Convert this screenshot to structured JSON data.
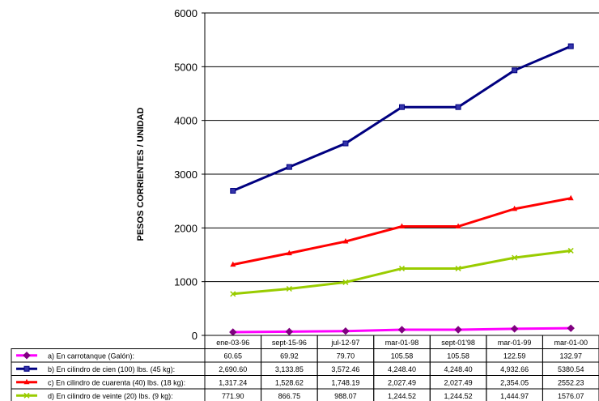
{
  "chart_data": {
    "type": "line",
    "title": "",
    "xlabel": "",
    "ylabel": "PESOS CORRIENTES / UNIDAD",
    "ylim": [
      0,
      6000
    ],
    "yticks": [
      "0",
      "1000",
      "2000",
      "3000",
      "4000",
      "5000",
      "6000"
    ],
    "categories": [
      "ene-03-96",
      "sept-15-96",
      "jul-12-97",
      "mar-01-98",
      "sept-01'98",
      "mar-01-99",
      "mar-01-00"
    ],
    "grid": true,
    "legend": "data-table",
    "series": [
      {
        "name": "a) En carrotanque (Galón):",
        "color": "#ff00ff",
        "marker": "diamond",
        "marker_color": "#800080",
        "values": [
          60.65,
          69.92,
          79.7,
          105.58,
          105.58,
          122.59,
          132.97
        ],
        "labels": [
          "60.65",
          "69.92",
          "79.70",
          "105.58",
          "105.58",
          "122.59",
          "132.97"
        ]
      },
      {
        "name": "b) En cilindro de cien (100) lbs. (45 kg):",
        "color": "#000080",
        "marker": "square",
        "marker_color": "#3333aa",
        "values": [
          2690.6,
          3133.85,
          3572.46,
          4248.4,
          4248.4,
          4932.66,
          5380.54
        ],
        "labels": [
          "2,690.60",
          "3,133.85",
          "3,572.46",
          "4,248.40",
          "4,248.40",
          "4,932.66",
          "5380.54"
        ]
      },
      {
        "name": "c) En cilindro de cuarenta (40) lbs. (18 kg):",
        "color": "#ff0000",
        "marker": "triangle",
        "marker_color": "#ff0000",
        "values": [
          1317.24,
          1528.62,
          1748.19,
          2027.49,
          2027.49,
          2354.05,
          2552.23
        ],
        "labels": [
          "1,317.24",
          "1,528.62",
          "1,748.19",
          "2,027.49",
          "2,027.49",
          "2,354.05",
          "2552.23"
        ]
      },
      {
        "name": "d) En cilindro de veinte (20) lbs. (9 kg):",
        "color": "#99cc00",
        "marker": "cross",
        "marker_color": "#99cc00",
        "values": [
          771.9,
          866.75,
          988.07,
          1244.52,
          1244.52,
          1444.97,
          1576.07
        ],
        "labels": [
          "771.90",
          "866.75",
          "988.07",
          "1,244.52",
          "1,244.52",
          "1,444.97",
          "1576.07"
        ]
      }
    ]
  }
}
